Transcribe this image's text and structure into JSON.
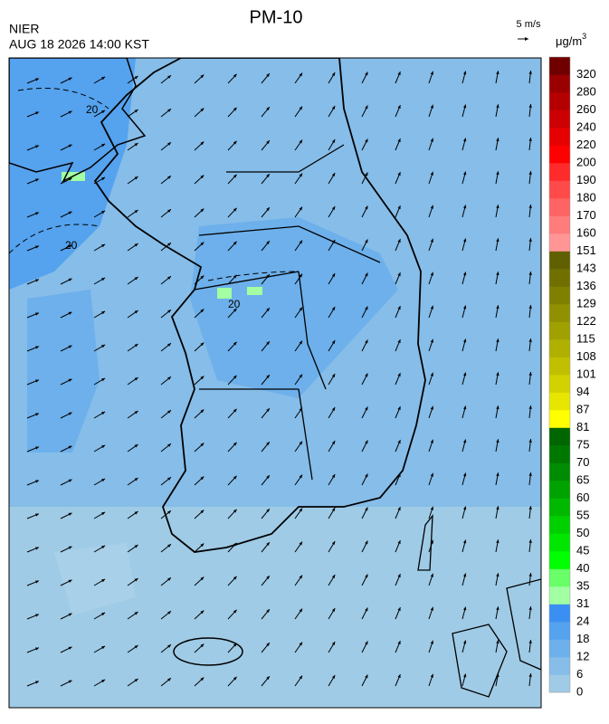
{
  "header": {
    "title": "PM-10",
    "agency": "NIER",
    "datetime": "AUG 18 2026 14:00 KST"
  },
  "wind_scale": {
    "label": "5 m/s"
  },
  "unit": {
    "base": "μg/m",
    "exponent": "3"
  },
  "colorbar": {
    "levels": [
      0,
      6,
      12,
      18,
      24,
      31,
      35,
      40,
      45,
      50,
      55,
      60,
      65,
      70,
      75,
      81,
      87,
      94,
      101,
      108,
      115,
      122,
      129,
      136,
      143,
      151,
      160,
      170,
      180,
      190,
      200,
      220,
      240,
      260,
      280,
      320
    ],
    "colors": [
      "#9fcbe6",
      "#86bde9",
      "#6db0eb",
      "#55a2ee",
      "#3a8ff2",
      "#a2ffa2",
      "#68ff68",
      "#00ff00",
      "#00e600",
      "#00cf00",
      "#00b800",
      "#00a200",
      "#008c00",
      "#007800",
      "#006600",
      "#ffff00",
      "#e6e600",
      "#d2d200",
      "#c0c000",
      "#b0b000",
      "#a0a000",
      "#909000",
      "#808000",
      "#707000",
      "#606000",
      "#ff9595",
      "#ff7c7c",
      "#ff6464",
      "#ff4a4a",
      "#ff2a2a",
      "#ff0000",
      "#e60000",
      "#cc0000",
      "#b40000",
      "#9a0000",
      "#700000"
    ]
  },
  "contour_labels": [
    "20",
    "20",
    "20"
  ]
}
